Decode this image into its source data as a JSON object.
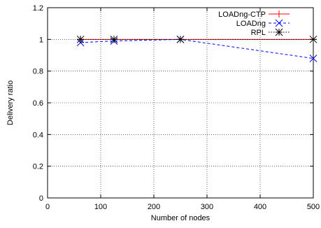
{
  "chart_data": {
    "type": "line",
    "xlabel": "Number of nodes",
    "ylabel": "Delivery ratio",
    "xlim": [
      0,
      500
    ],
    "ylim": [
      0,
      1.2
    ],
    "xticks": [
      0,
      100,
      200,
      300,
      400,
      500
    ],
    "yticks": [
      0,
      0.2,
      0.4,
      0.6,
      0.8,
      1,
      1.2
    ],
    "xtick_labels": [
      "0",
      "100",
      "200",
      "300",
      "400",
      "500"
    ],
    "ytick_labels": [
      "0",
      "0.2",
      "0.4",
      "0.6",
      "0.8",
      "1",
      "1.2"
    ],
    "grid": true,
    "legend_position": "top-right",
    "series": [
      {
        "name": "LOADng-CTP",
        "x": [
          62,
          125,
          250,
          500
        ],
        "y": [
          1.0,
          1.0,
          1.0,
          1.0
        ],
        "color": "#ff0000",
        "marker": "plus",
        "line": "solid"
      },
      {
        "name": "LOADng",
        "x": [
          62,
          125,
          250,
          500
        ],
        "y": [
          0.98,
          0.99,
          1.0,
          0.88
        ],
        "color": "#0000ff",
        "marker": "x",
        "line": "dashed"
      },
      {
        "name": "RPL",
        "x": [
          62,
          125,
          250,
          500
        ],
        "y": [
          1.0,
          1.0,
          1.0,
          1.0
        ],
        "color": "#000000",
        "marker": "star",
        "line": "dotted"
      }
    ]
  }
}
